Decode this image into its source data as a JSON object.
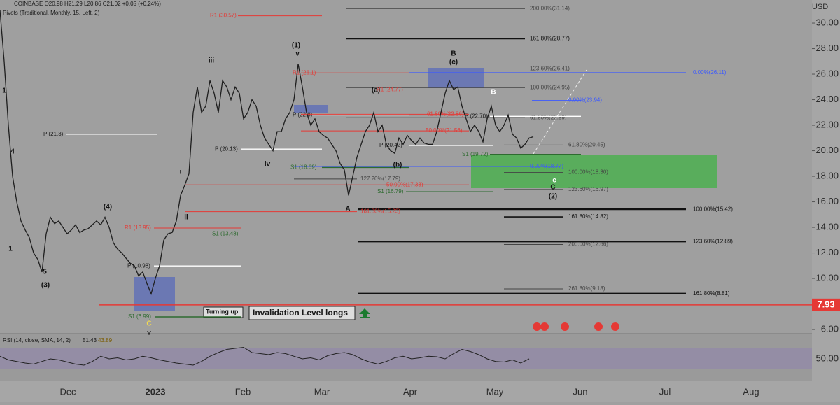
{
  "header": {
    "symbol_line": "COINBASE O20.98 H21.29 L20.86 C21.02 +0.05 (+0.24%)",
    "pivots": "Pivots (Traditional, Monthly, 15, Left, 2)",
    "currency": "USD"
  },
  "price_axis": {
    "ylim": [
      5.73,
      31.81
    ],
    "ticks": [
      {
        "value": 6,
        "label": "6.00"
      },
      {
        "value": 8,
        "label": "8.00"
      },
      {
        "value": 10,
        "label": "10.00"
      },
      {
        "value": 12,
        "label": "12.00"
      },
      {
        "value": 14,
        "label": "14.00"
      },
      {
        "value": 16,
        "label": "16.00"
      },
      {
        "value": 18,
        "label": "18.00"
      },
      {
        "value": 20,
        "label": "20.00"
      },
      {
        "value": 22,
        "label": "22.00"
      },
      {
        "value": 24,
        "label": "24.00"
      },
      {
        "value": 26,
        "label": "26.00"
      },
      {
        "value": 28,
        "label": "28.00"
      },
      {
        "value": 30,
        "label": "30.00"
      }
    ]
  },
  "time_axis": {
    "labels": [
      "Dec",
      "2023",
      "Feb",
      "Mar",
      "Apr",
      "May",
      "Jun",
      "Jul",
      "Aug"
    ]
  },
  "price": {
    "color": "#1e1e1e",
    "values": [
      31,
      27,
      22,
      18,
      16,
      14.5,
      13.8,
      13.2,
      12,
      11.5,
      10.5,
      13.5,
      14.8,
      14.3,
      14.5,
      14,
      13.5,
      13.8,
      14.2,
      13.6,
      13.8,
      13.9,
      14.2,
      14.5,
      14.2,
      14.8,
      14,
      12.8,
      12.3,
      12,
      11.6,
      11.2,
      11,
      10.2,
      10.5,
      9.6,
      8.8,
      10,
      11,
      13,
      13.5,
      13.6,
      14.5,
      16.5,
      17.3,
      18.2,
      23,
      25,
      23,
      23.5,
      25.5,
      24.5,
      23,
      25.5,
      25,
      24,
      25,
      24.5,
      22.5,
      23,
      24,
      23.5,
      22,
      21,
      20.5,
      20,
      21.5,
      21.5,
      22.5,
      23,
      24,
      26.8,
      25,
      23,
      22,
      22.5,
      21.5,
      21.2,
      21,
      20.5,
      20,
      19,
      18.5,
      16.5,
      18,
      19.5,
      20.5,
      21.5,
      22,
      23,
      21.5,
      22,
      20.5,
      20,
      19.8,
      21,
      20.5,
      21.2,
      20.8,
      20.5,
      21,
      20.6,
      20.5,
      20.5,
      21.5,
      23,
      24.5,
      25.5,
      24.8,
      25,
      23.5,
      22.5,
      21.5,
      22,
      21.5,
      20.7,
      22.5,
      23.5,
      22,
      21.5,
      22,
      22.8,
      21.3,
      21,
      20.2,
      20.5,
      21,
      21.1
    ]
  },
  "levels": [
    {
      "label": "200.00%(31.14)",
      "value": 31.14,
      "color": "#444444"
    },
    {
      "label": "161.80%(28.77)",
      "value": 28.77,
      "color": "#111111"
    },
    {
      "label": "123.60%(26.41)",
      "value": 26.41,
      "color": "#444444"
    },
    {
      "label": "100.00%(24.95)",
      "value": 24.95,
      "color": "#444444"
    },
    {
      "label": "61.80%(22.59)",
      "value": 22.59,
      "color": "#444444"
    },
    {
      "label": "61.80%(20.45)",
      "value": 20.45,
      "color": "#444444"
    },
    {
      "label": "100.00%(18.30)",
      "value": 18.3,
      "color": "#444444"
    },
    {
      "label": "123.60%(16.97)",
      "value": 16.97,
      "color": "#444444"
    },
    {
      "label": "161.80%(14.82)",
      "value": 14.82,
      "color": "#111111"
    },
    {
      "label": "200.00%(12.66)",
      "value": 12.66,
      "color": "#444444"
    },
    {
      "label": "261.80%(9.18)",
      "value": 9.18,
      "color": "#444444"
    },
    {
      "label": "0.00%(26.11)",
      "value": 26.11,
      "color": "#3d5afe"
    },
    {
      "label": "100.00%(15.42)",
      "value": 15.42,
      "color": "#111111"
    },
    {
      "label": "123.60%(12.89)",
      "value": 12.89,
      "color": "#111111"
    },
    {
      "label": "161.80%(8.81)",
      "value": 8.81,
      "color": "#111111"
    },
    {
      "label": "0.00%(23.94)",
      "value": 23.94,
      "color": "#3d5afe"
    },
    {
      "label": "0.00%(18.77)",
      "value": 18.77,
      "color": "#3d5afe"
    },
    {
      "label": "R1 (30.57)",
      "value": 30.57,
      "color": "#e53935"
    },
    {
      "label": "R1 (26.1)",
      "value": 26.1,
      "color": "#e53935"
    },
    {
      "label": "R1 (24.77)",
      "value": 24.77,
      "color": "#e53935"
    },
    {
      "label": "P (22.8)",
      "value": 22.8,
      "color": "#ffffff"
    },
    {
      "label": "S1 (18.69)",
      "value": 18.69,
      "color": "#2e6b30"
    },
    {
      "label": "R1 (13.95)",
      "value": 13.95,
      "color": "#e53935"
    },
    {
      "label": "S1 (13.48)",
      "value": 13.48,
      "color": "#2e6b30"
    },
    {
      "label": "P (21.3)",
      "value": 21.3,
      "color": "#ffffff"
    },
    {
      "label": "P (20.13)",
      "value": 20.13,
      "color": "#ffffff"
    },
    {
      "label": "P (10.98)",
      "value": 10.98,
      "color": "#ffffff"
    },
    {
      "label": "S1 (6.99)",
      "value": 6.99,
      "color": "#2e6b30"
    },
    {
      "label": "P (22.70)",
      "value": 22.7,
      "color": "#ffffff"
    },
    {
      "label": "S1 (19.72)",
      "value": 19.72,
      "color": "#2e6b30"
    },
    {
      "label": "S1 (16.79)",
      "value": 16.79,
      "color": "#2e6b30"
    },
    {
      "label": "61.80%(22.86)",
      "value": 22.86,
      "color": "#e53935"
    },
    {
      "label": "50.00%(21.56)",
      "value": 21.56,
      "color": "#e53935"
    },
    {
      "label": "50.00%(17.33)",
      "value": 17.33,
      "color": "#e53935"
    },
    {
      "label": "127.20%(17.79)",
      "value": 17.79,
      "color": "#444444"
    },
    {
      "label": "161.80%(15.23)",
      "value": 15.23,
      "color": "#e53935"
    },
    {
      "label": "P (20.42)",
      "value": 20.42,
      "color": "#ffffff"
    }
  ],
  "invalidation": {
    "value": 7.93,
    "color": "#e53935"
  },
  "wave_labels": [
    "(1)",
    "v",
    "iii",
    "iv",
    "i",
    "ii",
    "(4)",
    "4",
    "1",
    "1",
    "5",
    "(3)",
    "C",
    "v",
    "B",
    "(c)",
    "(a)",
    "(b)",
    "A",
    "B",
    "c",
    "C",
    "(2)"
  ],
  "notes": {
    "turning_up": "Turning up",
    "invalidation": "Invalidation Level longs"
  },
  "rsi": {
    "title": "RSI (14, close, SMA, 14, 2)",
    "rsi": 51.43,
    "sma": 43.89,
    "ylim": [
      7.3,
      96.7
    ],
    "ticks": [
      {
        "value": 50,
        "label": "50.00"
      }
    ],
    "values": [
      55,
      48,
      45,
      42,
      40,
      45,
      50,
      48,
      44,
      40,
      38,
      45,
      55,
      50,
      52,
      48,
      50,
      55,
      52,
      48,
      45,
      42,
      40,
      38,
      45,
      55,
      62,
      68,
      70,
      72,
      62,
      60,
      58,
      62,
      60,
      55,
      50,
      52,
      48,
      56,
      60,
      62,
      58,
      50,
      44,
      40,
      45,
      52,
      55,
      50,
      52,
      55,
      54,
      50,
      60,
      68,
      64,
      58,
      50,
      45,
      44,
      48,
      42,
      50
    ]
  }
}
